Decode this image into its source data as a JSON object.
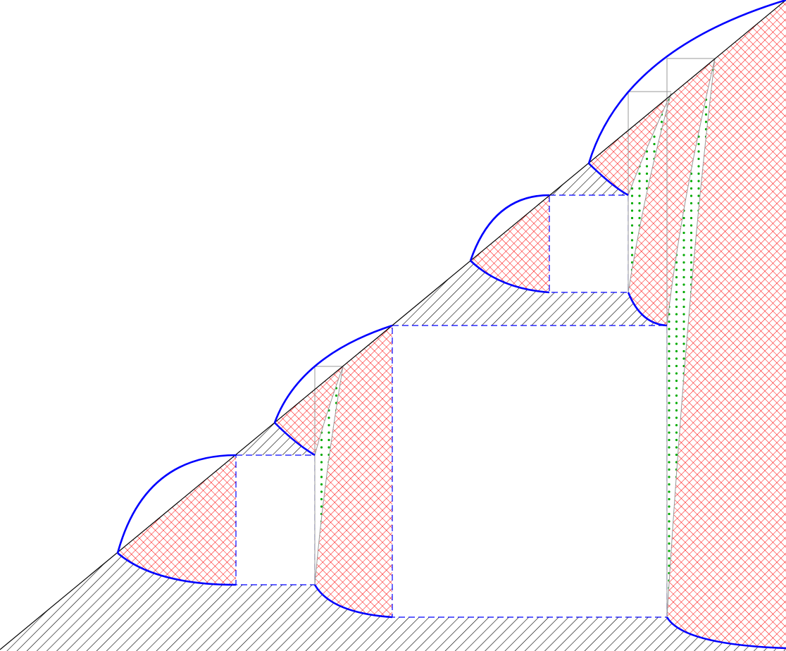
{
  "diagram": {
    "colors": {
      "curve": "#0000ff",
      "hatch": "#000000",
      "crosshatch": "#ff0000",
      "dots": "#00aa00",
      "grid": "#999999",
      "diagonal": "#000000"
    },
    "patterns": {
      "lower_region": "diagonal-hatch",
      "filled_regions": "red-crosshatch",
      "wedges": "green-dots",
      "squares": "white-dashed-outline"
    }
  }
}
